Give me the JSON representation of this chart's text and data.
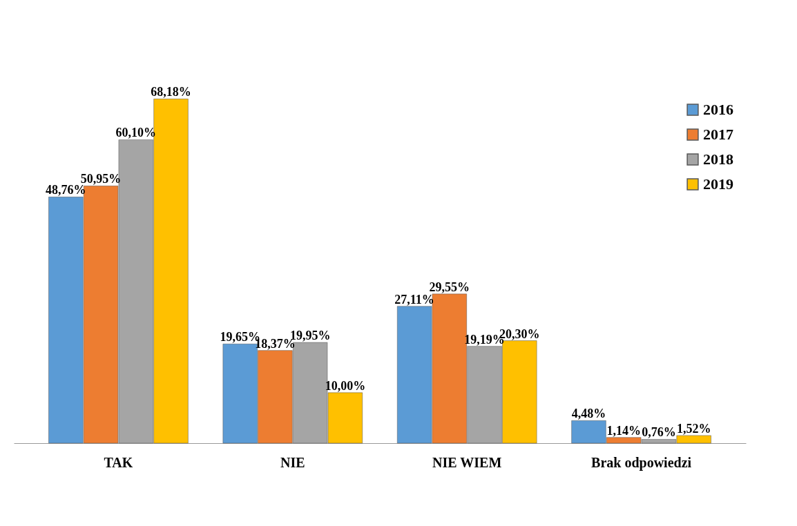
{
  "chart_data": {
    "type": "bar",
    "categories": [
      "TAK",
      "NIE",
      "NIE WIEM",
      "Brak odpowiedzi"
    ],
    "series": [
      {
        "name": "2016",
        "color": "#5b9bd5",
        "values": [
          48.76,
          19.65,
          27.11,
          4.48
        ],
        "value_labels": [
          "48,76%",
          "19,65%",
          "27,11%",
          "4,48%"
        ]
      },
      {
        "name": "2017",
        "color": "#ed7d31",
        "values": [
          50.95,
          18.37,
          29.55,
          1.14
        ],
        "value_labels": [
          "50,95%",
          "18,37%",
          "29,55%",
          "1,14%"
        ]
      },
      {
        "name": "2018",
        "color": "#a5a5a5",
        "values": [
          60.1,
          19.95,
          19.19,
          0.76
        ],
        "value_labels": [
          "60,10%",
          "19,95%",
          "19,19%",
          "0,76%"
        ]
      },
      {
        "name": "2019",
        "color": "#ffc000",
        "values": [
          68.18,
          10.0,
          20.3,
          1.52
        ],
        "value_labels": [
          "68,18%",
          "10,00%",
          "20,30%",
          "1,52%"
        ]
      }
    ],
    "legend": "top right",
    "grid": false
  }
}
